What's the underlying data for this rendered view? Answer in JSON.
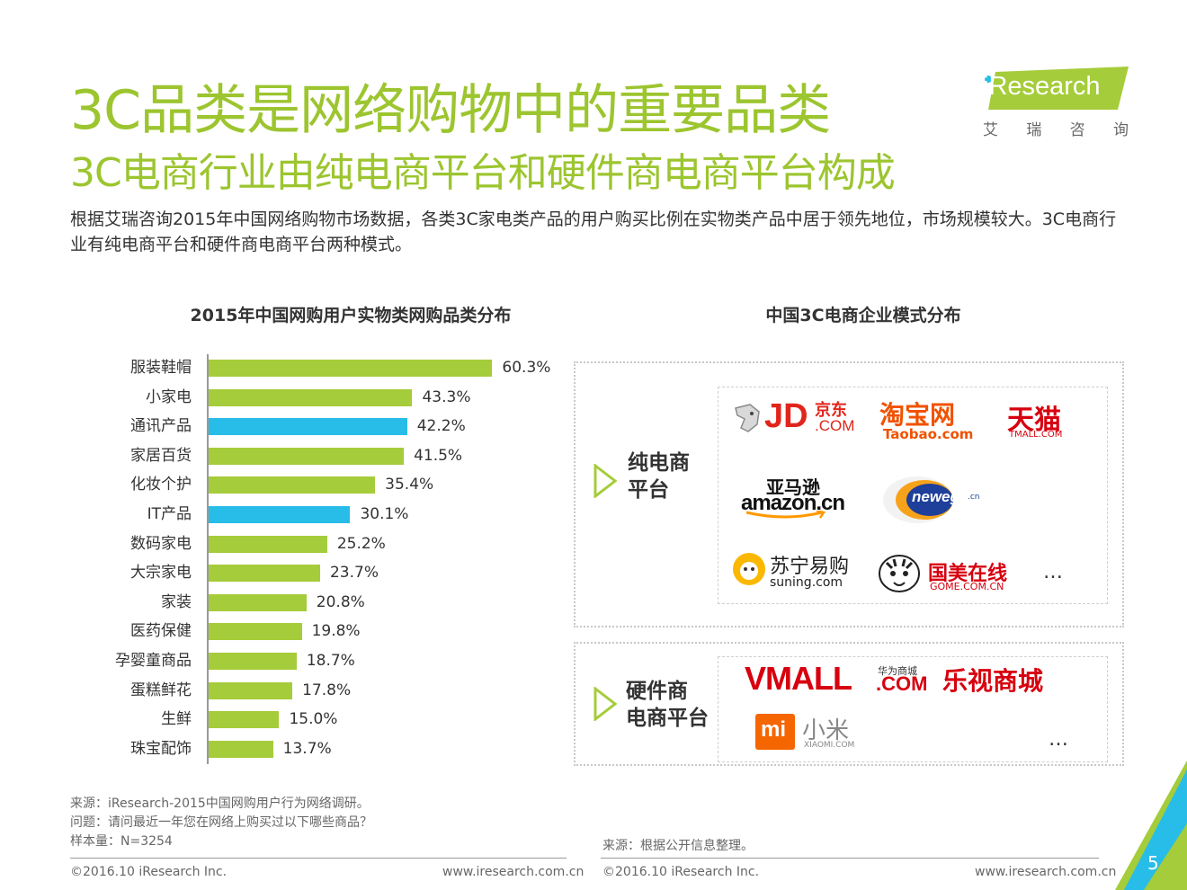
{
  "header": {
    "title": "3C品类是网络购物中的重要品类",
    "subtitle": "3C电商行业由纯电商平台和硬件商电商平台构成",
    "intro": "根据艾瑞咨询2015年中国网络购物市场数据，各类3C家电类产品的用户购买比例在实物类产品中居于领先地位，市场规模较大。3C电商行业有纯电商平台和硬件商电商平台两种模式。"
  },
  "logo": {
    "wordmark": "iResearch",
    "cn_chars": [
      "艾",
      "瑞",
      "咨",
      "询"
    ]
  },
  "chart_data": {
    "type": "bar",
    "orientation": "horizontal",
    "title": "2015年中国网购用户实物类网购品类分布",
    "categories": [
      "服装鞋帽",
      "小家电",
      "通讯产品",
      "家居百货",
      "化妆个护",
      "IT产品",
      "数码家电",
      "大宗家电",
      "家装",
      "医药保健",
      "孕婴童商品",
      "蛋糕鲜花",
      "生鲜",
      "珠宝配饰"
    ],
    "values": [
      60.3,
      43.3,
      42.2,
      41.5,
      35.4,
      30.1,
      25.2,
      23.7,
      20.8,
      19.8,
      18.7,
      17.8,
      15.0,
      13.7
    ],
    "value_labels": [
      "60.3%",
      "43.3%",
      "42.2%",
      "41.5%",
      "35.4%",
      "30.1%",
      "25.2%",
      "23.7%",
      "20.8%",
      "19.8%",
      "18.7%",
      "17.8%",
      "15.0%",
      "13.7%"
    ],
    "highlight": [
      false,
      false,
      true,
      false,
      false,
      true,
      false,
      false,
      false,
      false,
      false,
      false,
      false,
      false
    ],
    "xlim": [
      0,
      65
    ],
    "colors": {
      "default": "#a5cc3a",
      "highlight": "#27bde8"
    }
  },
  "right": {
    "title": "中国3C电商企业模式分布",
    "pure": {
      "label_lines": [
        "纯电商",
        "平台"
      ],
      "brands": {
        "jd_main": "JD",
        "jd_cn": "京东",
        "jd_com": ".COM",
        "taobao_cn": "淘宝网",
        "taobao_en": "Taobao.com",
        "tmall_cn": "天猫",
        "tmall_en": "TMALL.COM",
        "amazon_cn": "亚马逊",
        "amazon_en": "amazon.cn",
        "newegg": "newegg",
        "newegg_suffix": ".cn",
        "suning_cn": "苏宁易购",
        "suning_en": "suning.com",
        "gome_cn": "国美在线",
        "gome_en": "GOME.COM.CN"
      },
      "more": "…"
    },
    "hardware": {
      "label_lines": [
        "硬件商",
        "电商平台"
      ],
      "brands": {
        "vmall": "VMALL",
        "vmall_com": ".COM",
        "vmall_cn": "华为商城",
        "letv": "乐视商城",
        "mi_mark": "mi",
        "mi_cn": "小米",
        "mi_en": "XIAOMI.COM"
      },
      "more": "…"
    }
  },
  "footer": {
    "left_lines": [
      "来源：iResearch-2015中国网购用户行为网络调研。",
      "问题：请问最近一年您在网络上购买过以下哪些商品？",
      "样本量：N=3254"
    ],
    "right_source": "来源：根据公开信息整理。",
    "copyright": "©2016.10 iResearch Inc.",
    "website": "www.iresearch.com.cn",
    "page_number": "5"
  },
  "colors": {
    "title": "#9cc52f",
    "corner_green": "#a5cc3a",
    "corner_blue": "#27bde8"
  }
}
